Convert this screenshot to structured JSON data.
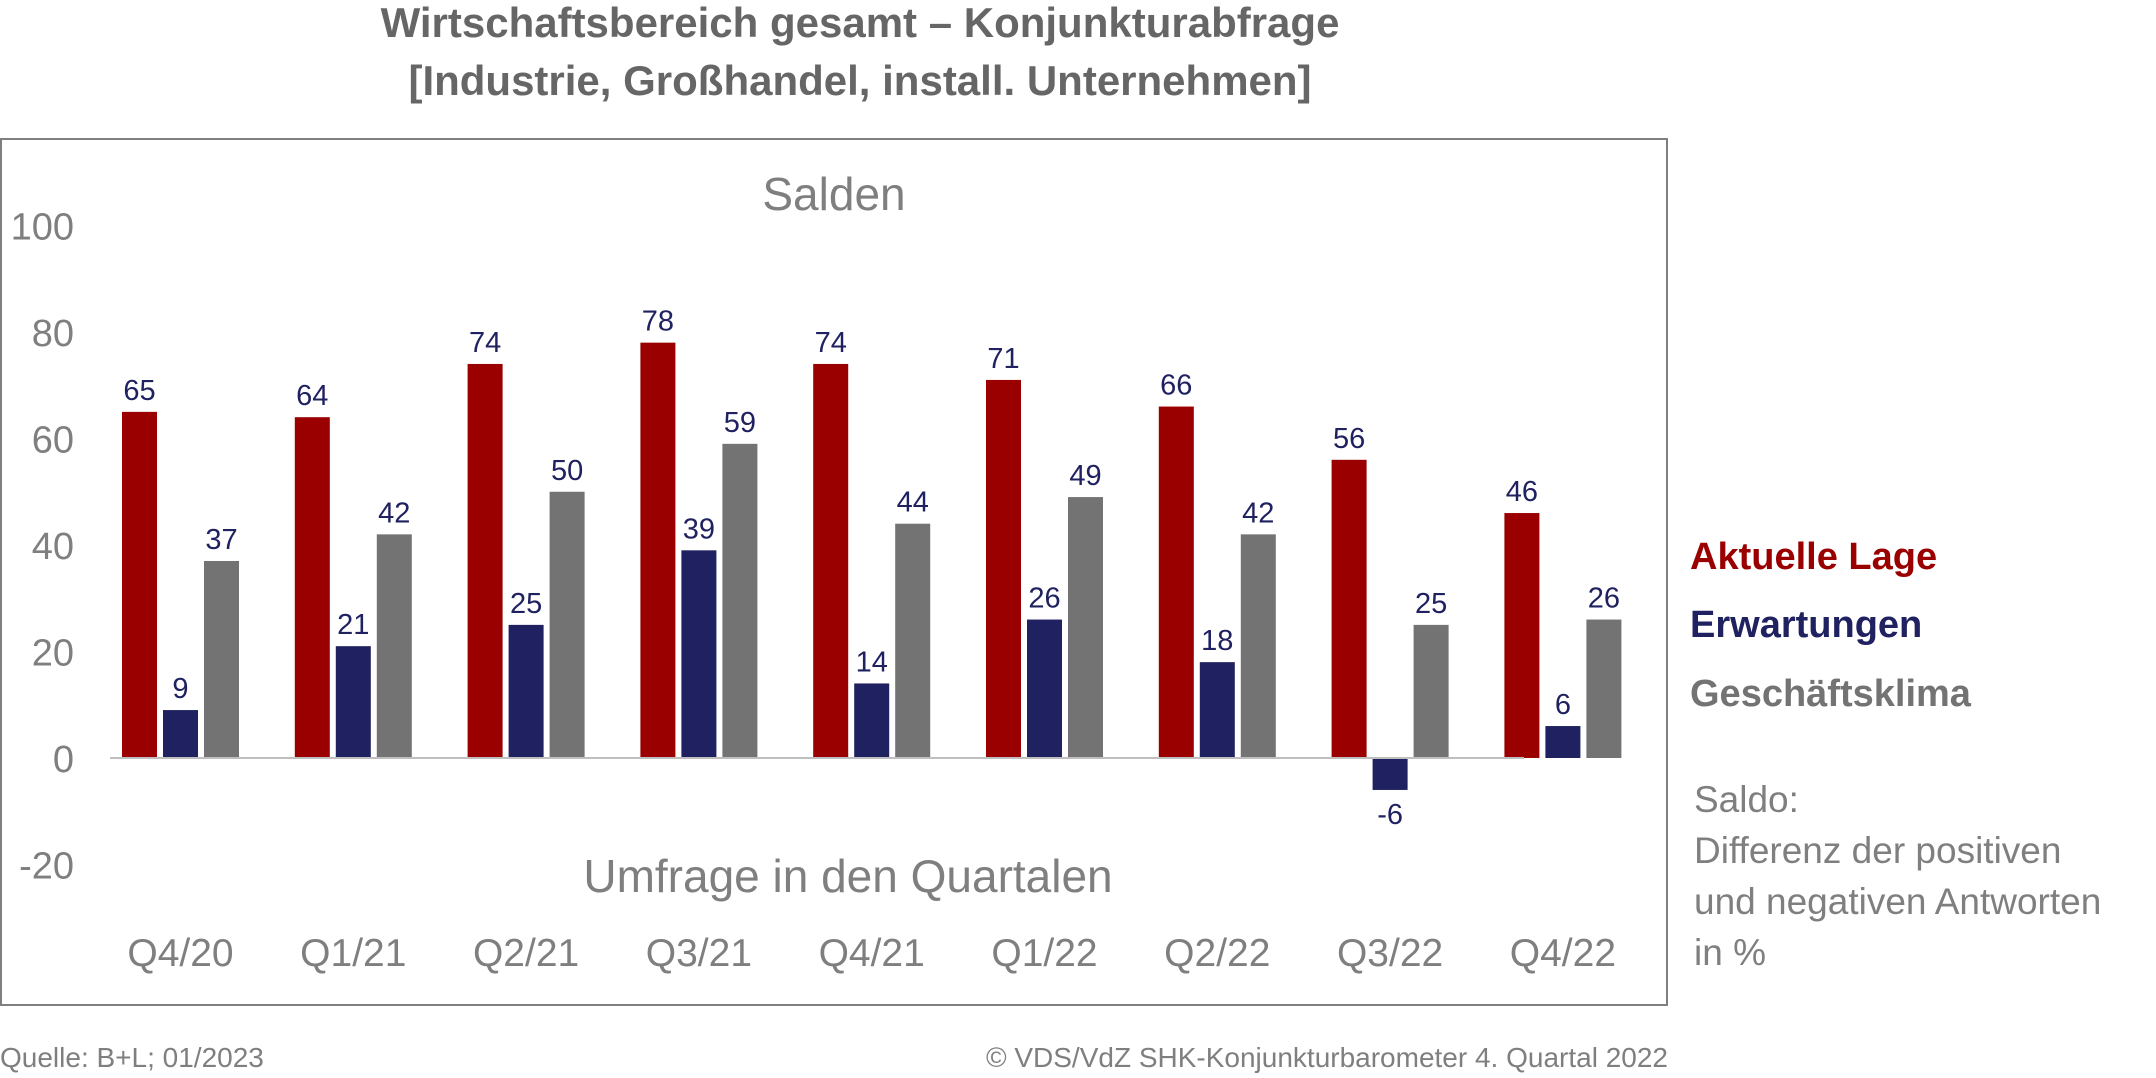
{
  "title": {
    "line1": "Wirtschaftsbereich gesamt – Konjunkturabfrage",
    "line2": "[Industrie, Großhandel, install. Unternehmen]"
  },
  "chart_data": {
    "type": "bar",
    "subtitle": "Salden",
    "xlabel": "Umfrage in den Quartalen",
    "ylabel": "",
    "ylim": [
      -20,
      100
    ],
    "yticks": [
      100,
      80,
      60,
      40,
      20,
      0,
      -20
    ],
    "grid": false,
    "legend_position": "right",
    "categories": [
      "Q4/20",
      "Q1/21",
      "Q2/21",
      "Q3/21",
      "Q4/21",
      "Q1/22",
      "Q2/22",
      "Q3/22",
      "Q4/22"
    ],
    "series": [
      {
        "name": "Aktuelle Lage",
        "color": "#9b0000",
        "values": [
          65,
          64,
          74,
          78,
          74,
          71,
          66,
          56,
          46
        ]
      },
      {
        "name": "Erwartungen",
        "color": "#1f2160",
        "values": [
          9,
          21,
          25,
          39,
          14,
          26,
          18,
          -6,
          6
        ]
      },
      {
        "name": "Geschäftsklima",
        "color": "#737373",
        "values": [
          37,
          42,
          50,
          59,
          44,
          49,
          42,
          25,
          26
        ]
      }
    ]
  },
  "legend_colors": {
    "label": "#1f2160",
    "ticks": "#7f7f7f"
  },
  "note": {
    "line1": "Saldo:",
    "line2": "Differenz der positiven",
    "line3": "und negativen Antworten",
    "line4": "in %"
  },
  "footer": {
    "source": "Quelle: B+L; 01/2023",
    "copyright": "© VDS/VdZ SHK-Konjunkturbarometer 4. Quartal 2022"
  }
}
